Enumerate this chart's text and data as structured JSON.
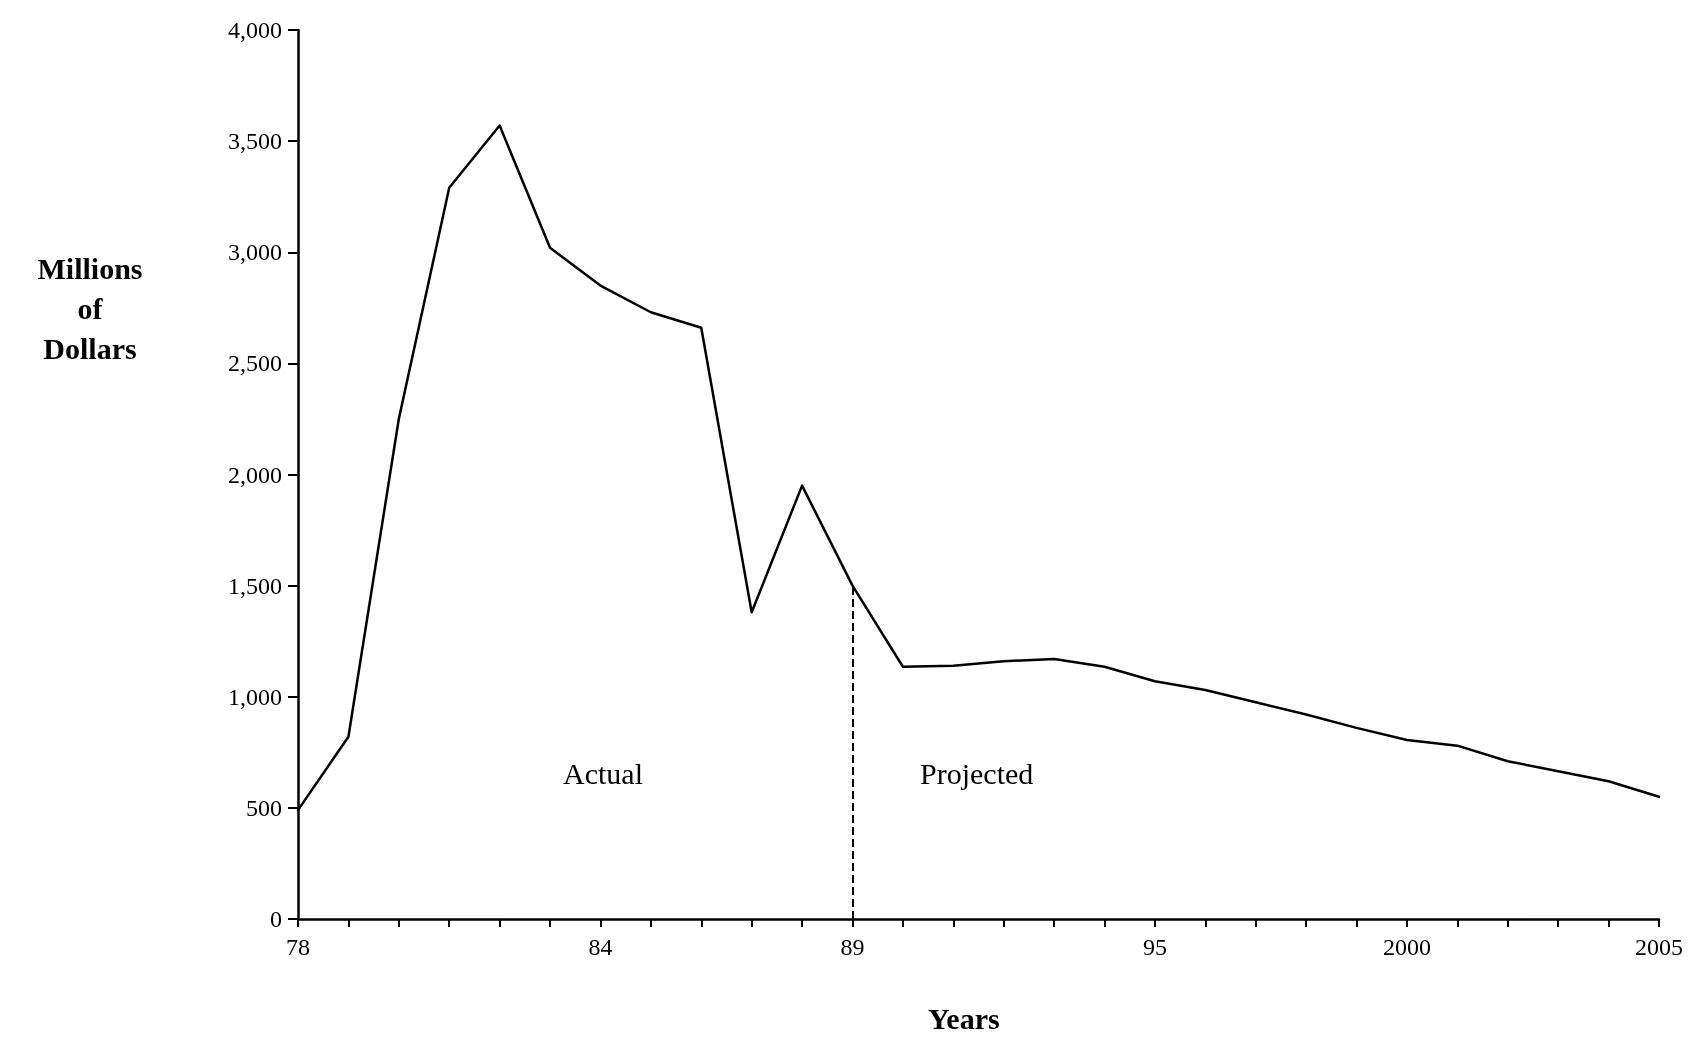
{
  "chart_data": {
    "type": "line",
    "xlabel": "Years",
    "ylabel": "Millions of Dollars",
    "x": [
      1978,
      1979,
      1980,
      1981,
      1982,
      1983,
      1984,
      1985,
      1986,
      1987,
      1988,
      1989,
      1990,
      1991,
      1992,
      1993,
      1994,
      1995,
      1996,
      1997,
      1998,
      1999,
      2000,
      2001,
      2002,
      2003,
      2004,
      2005
    ],
    "series": [
      {
        "color": "#000000",
        "values": [
          490,
          820,
          2250,
          3290,
          3570,
          3020,
          2850,
          2730,
          2660,
          1380,
          1950,
          1500,
          1135,
          1140,
          1160,
          1170,
          1135,
          1070,
          1030,
          975,
          920,
          860,
          805,
          780,
          710,
          665,
          620,
          550
        ]
      }
    ],
    "xlim": [
      1978,
      2005
    ],
    "xticks": [
      {
        "value": 1978,
        "label": "78"
      },
      {
        "value": 1979,
        "label": null
      },
      {
        "value": 1980,
        "label": null
      },
      {
        "value": 1981,
        "label": null
      },
      {
        "value": 1982,
        "label": null
      },
      {
        "value": 1983,
        "label": null
      },
      {
        "value": 1984,
        "label": "84"
      },
      {
        "value": 1985,
        "label": null
      },
      {
        "value": 1986,
        "label": null
      },
      {
        "value": 1987,
        "label": null
      },
      {
        "value": 1988,
        "label": null
      },
      {
        "value": 1989,
        "label": "89"
      },
      {
        "value": 1990,
        "label": null
      },
      {
        "value": 1991,
        "label": null
      },
      {
        "value": 1992,
        "label": null
      },
      {
        "value": 1993,
        "label": null
      },
      {
        "value": 1994,
        "label": null
      },
      {
        "value": 1995,
        "label": "95"
      },
      {
        "value": 1996,
        "label": null
      },
      {
        "value": 1997,
        "label": null
      },
      {
        "value": 1998,
        "label": null
      },
      {
        "value": 1999,
        "label": null
      },
      {
        "value": 2000,
        "label": "2000"
      },
      {
        "value": 2001,
        "label": null
      },
      {
        "value": 2002,
        "label": null
      },
      {
        "value": 2003,
        "label": null
      },
      {
        "value": 2004,
        "label": null
      },
      {
        "value": 2005,
        "label": "2005"
      }
    ],
    "ylim": [
      0,
      4000
    ],
    "yticks": [
      0,
      500,
      {
        "value": 1000,
        "label": "1,000"
      },
      {
        "value": 1500,
        "label": "1,500"
      },
      {
        "value": 2000,
        "label": "2,000"
      },
      {
        "value": 2500,
        "label": "2,500"
      },
      {
        "value": 3000,
        "label": "3,000"
      },
      {
        "value": 3500,
        "label": "3,500"
      },
      {
        "value": 4000,
        "label": "4,000"
      }
    ],
    "ref_lines": [
      {
        "axis": "x",
        "value": 1989,
        "color": "#000000",
        "line_style": "dashed"
      }
    ],
    "annotations": [
      "Actual",
      "Projected"
    ],
    "grid": false,
    "marker": "none",
    "line_style": "solid"
  }
}
